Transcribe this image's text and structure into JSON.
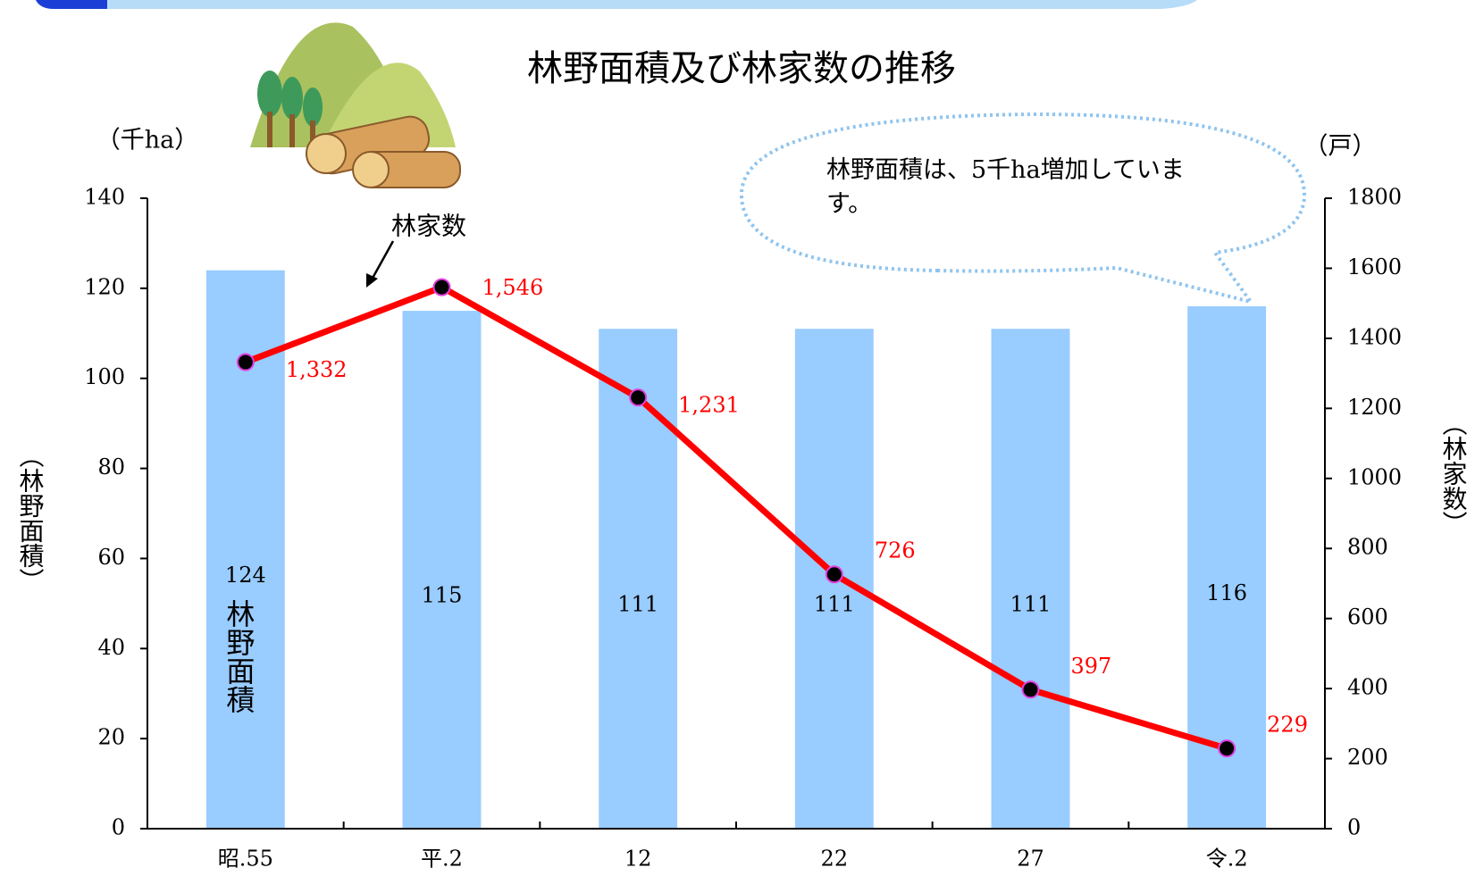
{
  "chart_data": {
    "type": "combo",
    "title": "林野面積及び林家数の推移",
    "y_label": "（林野面積）",
    "y_unit": "（千ha）",
    "y2_label": "（林家数）",
    "y2_unit": "（戸）",
    "annotations": {
      "line_label": "林家数",
      "bar_label": "林野面積",
      "callout": "林野面積は、5千ha増加しています。"
    },
    "categories": [
      "昭.55",
      "平.2",
      "12",
      "22",
      "27",
      "令.2"
    ],
    "series": [
      {
        "name": "林野面積",
        "type": "bar",
        "color": "#99ccff",
        "values": [
          124,
          115,
          111,
          111,
          111,
          116
        ]
      },
      {
        "name": "林家数",
        "type": "line",
        "axis": "y2",
        "color": "#ff0000",
        "values": [
          1332,
          1546,
          1231,
          726,
          397,
          229
        ],
        "value_labels": [
          "1,332",
          "1,546",
          "1,231",
          "726",
          "397",
          "229"
        ]
      }
    ],
    "ylim": [
      0,
      140
    ],
    "yticks": [
      0,
      20,
      40,
      60,
      80,
      100,
      120,
      140
    ],
    "y2lim": [
      0,
      1800
    ],
    "y2ticks": [
      0,
      200,
      400,
      600,
      800,
      1000,
      1200,
      1400,
      1600,
      1800
    ],
    "grid": false
  }
}
